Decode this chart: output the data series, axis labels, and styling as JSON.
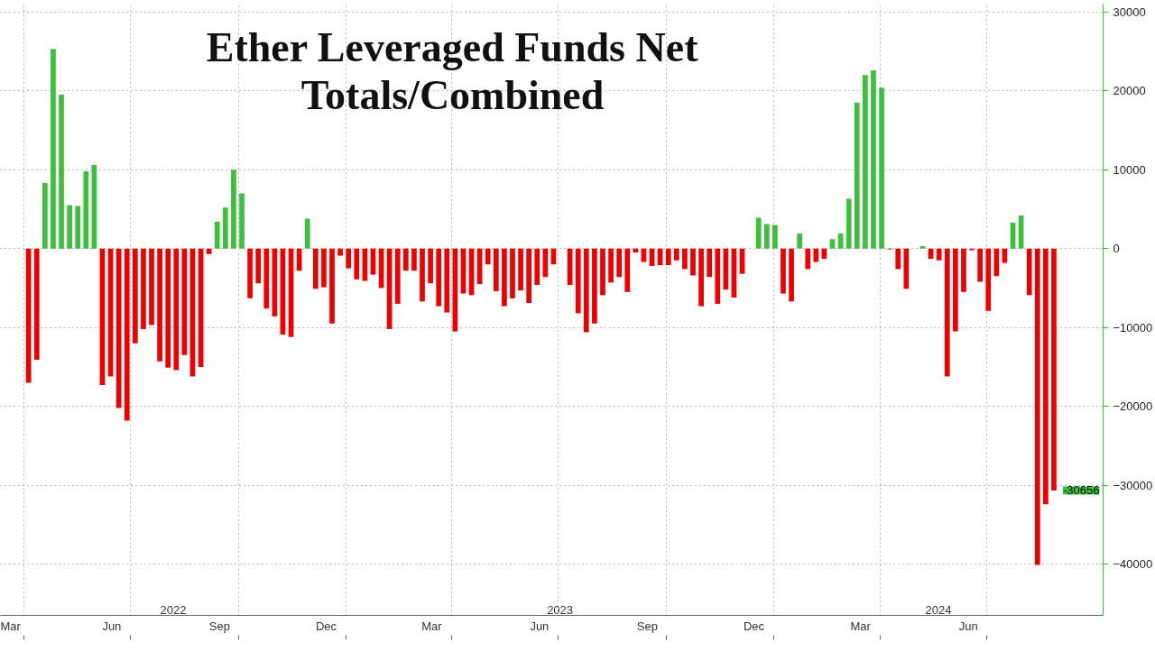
{
  "chart_data": {
    "type": "bar",
    "title": "Ether Leveraged Funds Net\nTotals/Combined",
    "x": [
      "2022-04-05",
      "2022-04-12",
      "2022-04-19",
      "2022-04-26",
      "2022-05-03",
      "2022-05-10",
      "2022-05-17",
      "2022-05-24",
      "2022-05-31",
      "2022-06-07",
      "2022-06-14",
      "2022-06-21",
      "2022-06-28",
      "2022-07-05",
      "2022-07-12",
      "2022-07-19",
      "2022-07-26",
      "2022-08-02",
      "2022-08-09",
      "2022-08-16",
      "2022-08-23",
      "2022-08-30",
      "2022-09-06",
      "2022-09-13",
      "2022-09-20",
      "2022-09-27",
      "2022-10-04",
      "2022-10-11",
      "2022-10-18",
      "2022-10-25",
      "2022-11-01",
      "2022-11-08",
      "2022-11-15",
      "2022-11-22",
      "2022-11-29",
      "2022-12-06",
      "2022-12-13",
      "2022-12-20",
      "2022-12-27",
      "2023-01-03",
      "2023-01-10",
      "2023-01-17",
      "2023-01-24",
      "2023-01-31",
      "2023-02-07",
      "2023-02-14",
      "2023-02-21",
      "2023-02-28",
      "2023-03-07",
      "2023-03-14",
      "2023-03-21",
      "2023-03-28",
      "2023-04-04",
      "2023-04-11",
      "2023-04-18",
      "2023-04-25",
      "2023-05-02",
      "2023-05-09",
      "2023-05-16",
      "2023-05-23",
      "2023-05-30",
      "2023-06-06",
      "2023-06-13",
      "2023-06-20",
      "2023-06-27",
      "2023-07-04",
      "2023-07-11",
      "2023-07-18",
      "2023-07-25",
      "2023-08-01",
      "2023-08-08",
      "2023-08-15",
      "2023-08-22",
      "2023-08-29",
      "2023-09-05",
      "2023-09-12",
      "2023-09-19",
      "2023-09-26",
      "2023-10-03",
      "2023-10-10",
      "2023-10-17",
      "2023-10-24",
      "2023-10-31",
      "2023-11-07",
      "2023-11-14",
      "2023-11-21",
      "2023-11-28",
      "2023-12-05",
      "2023-12-12",
      "2023-12-19",
      "2023-12-26",
      "2024-01-02",
      "2024-01-09",
      "2024-01-16",
      "2024-01-23",
      "2024-01-30",
      "2024-02-06",
      "2024-02-13",
      "2024-02-20",
      "2024-02-27",
      "2024-03-05",
      "2024-03-12",
      "2024-03-19",
      "2024-03-26",
      "2024-04-02",
      "2024-04-09",
      "2024-04-16",
      "2024-04-23",
      "2024-04-30",
      "2024-05-07",
      "2024-05-14",
      "2024-05-21",
      "2024-05-28",
      "2024-06-04",
      "2024-06-11",
      "2024-06-18",
      "2024-06-25",
      "2024-07-02",
      "2024-07-09",
      "2024-07-16",
      "2024-07-23",
      "2024-07-30",
      "2024-08-06",
      "2024-08-13",
      "2024-08-20",
      "2024-08-27"
    ],
    "values": [
      -17000,
      -14100,
      8300,
      25300,
      19500,
      5500,
      5400,
      9800,
      10600,
      -17300,
      -16200,
      -20200,
      -21800,
      -12000,
      -10200,
      -9700,
      -14300,
      -15100,
      -15400,
      -13500,
      -16200,
      -15000,
      -700,
      3400,
      5200,
      10000,
      7000,
      -6300,
      -4400,
      -7600,
      -8600,
      -10900,
      -11200,
      -2800,
      3800,
      -5100,
      -4900,
      -9500,
      -900,
      -2500,
      -3900,
      -4100,
      -3300,
      -5000,
      -10200,
      -7000,
      -2800,
      -2800,
      -6700,
      -4400,
      -7300,
      -8100,
      -10500,
      -5700,
      -5900,
      -4500,
      -2000,
      -5400,
      -7300,
      -6300,
      -5300,
      -6900,
      -4600,
      -3600,
      -2000,
      0,
      -4600,
      -8200,
      -10600,
      -9500,
      -5900,
      -4300,
      -3600,
      -5500,
      -500,
      -1700,
      -2200,
      -2100,
      -2100,
      -1500,
      -2600,
      -3400,
      -7300,
      -3600,
      -7000,
      -5200,
      -6200,
      -3200,
      0,
      3900,
      3100,
      3000,
      -5700,
      -6700,
      1900,
      -2600,
      -1700,
      -1300,
      1200,
      1900,
      6300,
      18500,
      22000,
      22600,
      20400,
      -100,
      -2600,
      -5100,
      0,
      300,
      -1300,
      -1500,
      -16200,
      -10500,
      -5500,
      -200,
      -4200,
      -7900,
      -3500,
      -1800,
      3300,
      4200,
      -5900,
      -40100,
      -32400,
      -30656
    ],
    "colors": [
      "#ee0000",
      "#ee0000",
      "#3cbf3c",
      "#3cbf3c",
      "#3cbf3c",
      "#3cbf3c",
      "#3cbf3c",
      "#3cbf3c",
      "#3cbf3c",
      "#ee0000",
      "#ee0000",
      "#ee0000",
      "#ee0000",
      "#ee0000",
      "#ee0000",
      "#ee0000",
      "#ee0000",
      "#ee0000",
      "#ee0000",
      "#ee0000",
      "#ee0000",
      "#ee0000",
      "#ee0000",
      "#3cbf3c",
      "#3cbf3c",
      "#3cbf3c",
      "#3cbf3c",
      "#ee0000",
      "#ee0000",
      "#ee0000",
      "#ee0000",
      "#ee0000",
      "#ee0000",
      "#ee0000",
      "#3cbf3c",
      "#ee0000",
      "#ee0000",
      "#ee0000",
      "#ee0000",
      "#ee0000",
      "#ee0000",
      "#ee0000",
      "#ee0000",
      "#ee0000",
      "#ee0000",
      "#ee0000",
      "#ee0000",
      "#ee0000",
      "#ee0000",
      "#ee0000",
      "#ee0000",
      "#ee0000",
      "#ee0000",
      "#ee0000",
      "#ee0000",
      "#ee0000",
      "#ee0000",
      "#ee0000",
      "#ee0000",
      "#ee0000",
      "#ee0000",
      "#ee0000",
      "#ee0000",
      "#ee0000",
      "#ee0000",
      "#ee0000",
      "#ee0000",
      "#ee0000",
      "#ee0000",
      "#ee0000",
      "#ee0000",
      "#ee0000",
      "#ee0000",
      "#ee0000",
      "#ee0000",
      "#ee0000",
      "#ee0000",
      "#ee0000",
      "#ee0000",
      "#ee0000",
      "#ee0000",
      "#ee0000",
      "#ee0000",
      "#ee0000",
      "#ee0000",
      "#ee0000",
      "#ee0000",
      "#ee0000",
      "#3cbf3c",
      "#3cbf3c",
      "#3cbf3c",
      "#3cbf3c",
      "#ee0000",
      "#ee0000",
      "#3cbf3c",
      "#ee0000",
      "#ee0000",
      "#ee0000",
      "#3cbf3c",
      "#3cbf3c",
      "#3cbf3c",
      "#3cbf3c",
      "#3cbf3c",
      "#3cbf3c",
      "#3cbf3c",
      "#ee0000",
      "#ee0000",
      "#ee0000",
      "#3cbf3c",
      "#3cbf3c",
      "#ee0000",
      "#ee0000",
      "#ee0000",
      "#ee0000",
      "#ee0000",
      "#ee0000",
      "#ee0000",
      "#ee0000",
      "#ee0000",
      "#ee0000",
      "#3cbf3c",
      "#3cbf3c",
      "#ee0000",
      "#ee0000",
      "#ee0000",
      "#ee0000"
    ],
    "xlim": [
      "2022-03-12",
      "2024-10-08"
    ],
    "xticks": [
      {
        "value": "2022-03-15",
        "label": "Mar"
      },
      {
        "value": "2022-06-15",
        "label": "Jun"
      },
      {
        "value": "2022-09-15",
        "label": "Sep"
      },
      {
        "value": "2022-12-15",
        "label": "Dec"
      },
      {
        "value": "2023-03-15",
        "label": "Mar"
      },
      {
        "value": "2023-06-15",
        "label": "Jun"
      },
      {
        "value": "2023-09-15",
        "label": "Sep"
      },
      {
        "value": "2023-12-15",
        "label": "Dec"
      },
      {
        "value": "2024-03-15",
        "label": "Mar"
      },
      {
        "value": "2024-06-15",
        "label": "Jun"
      },
      {
        "value": "2022-04-01",
        "label": null
      },
      {
        "value": "2022-07-01",
        "label": null
      },
      {
        "value": "2022-10-01",
        "label": null
      },
      {
        "value": "2023-01-01",
        "label": null
      },
      {
        "value": "2023-04-01",
        "label": null
      },
      {
        "value": "2023-07-01",
        "label": null
      },
      {
        "value": "2023-10-01",
        "label": null
      },
      {
        "value": "2024-01-01",
        "label": null
      },
      {
        "value": "2024-04-01",
        "label": null
      },
      {
        "value": "2024-07-01",
        "label": null
      }
    ],
    "ylim": [
      -46500,
      31000
    ],
    "yticks": [
      -40000,
      -30000,
      -20000,
      -10000,
      0,
      10000,
      20000,
      30000
    ],
    "grid": true,
    "annotations": [
      "2022",
      "2023",
      "2024",
      {
        "text": "-30656",
        "x": "2024-08-27",
        "y": -30656
      }
    ]
  }
}
